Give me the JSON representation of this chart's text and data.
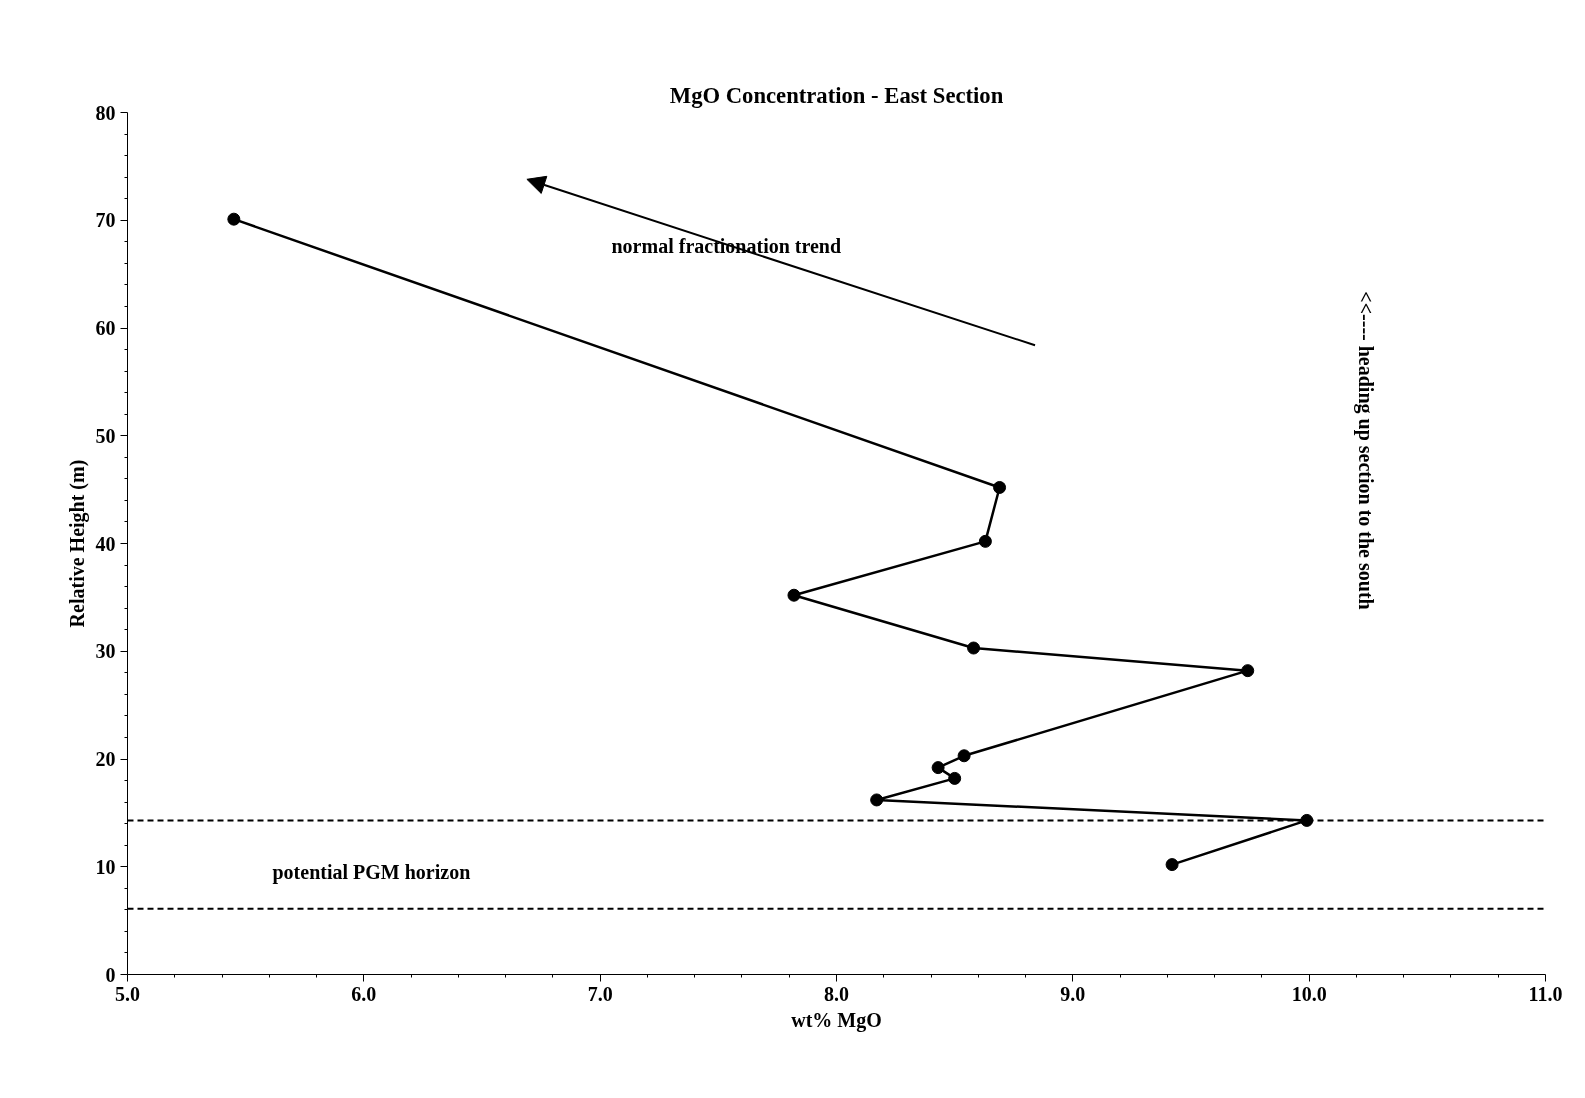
{
  "chart_data": {
    "type": "line",
    "title": "MgO Concentration - East Section",
    "xlabel": "wt% MgO",
    "ylabel": "Relative Height (m)",
    "x": [
      5.45,
      8.69,
      8.63,
      7.82,
      8.58,
      9.74,
      8.54,
      8.43,
      8.5,
      8.17,
      9.99,
      9.42
    ],
    "values": [
      70.1,
      45.2,
      40.2,
      35.2,
      30.3,
      28.2,
      20.3,
      19.2,
      18.2,
      16.2,
      14.3,
      10.2
    ],
    "color": "#000000",
    "marker": "circle",
    "line_style": "solid",
    "grid": false,
    "xlim": [
      5,
      11
    ],
    "ylim": [
      0,
      80
    ],
    "xticks": [
      {
        "value": 5,
        "label": "5.0"
      },
      {
        "value": 6,
        "label": "6.0"
      },
      {
        "value": 7,
        "label": "7.0"
      },
      {
        "value": 8,
        "label": "8.0"
      },
      {
        "value": 9,
        "label": "9.0"
      },
      {
        "value": 10,
        "label": "10.0"
      },
      {
        "value": 11,
        "label": "11.0"
      }
    ],
    "yticks": [
      0,
      10,
      20,
      30,
      40,
      50,
      60,
      70,
      80
    ],
    "ref_lines": [
      {
        "axis": "y",
        "value": 14.3,
        "line_style": "dashed",
        "color": "#000000"
      },
      {
        "axis": "y",
        "value": 6.1,
        "line_style": "dashed",
        "color": "#000000"
      }
    ],
    "annotations": [
      "normal fractionation trend",
      "potential PGM horizon",
      "<<---- heading up section to the south"
    ]
  }
}
